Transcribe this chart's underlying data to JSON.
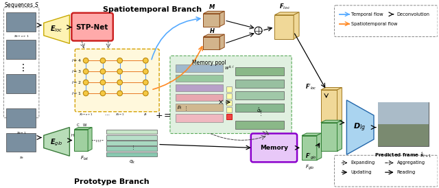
{
  "bg_color": "#ffffff",
  "spatiotemporal_branch_label": "Spatiotemporal Branch",
  "prototype_branch_label": "Prototype Branch",
  "sequences_label": "Sequences $S$",
  "predicted_frame_label": "Predicted frame $\\hat{\\boldsymbol{s}}_{t+1}$",
  "eloc_color": "#fef3b4",
  "eloc_edge": "#c8a800",
  "eglo_color": "#b8ddb8",
  "eglo_edge": "#3a7a3a",
  "stp_color": "#ffaaaa",
  "stp_edge": "#cc2222",
  "nn_box_color": "#fff8dc",
  "nn_box_edge": "#d4a000",
  "node_color": "#f5c842",
  "node_edge": "#b8860b",
  "orange_c": "#e87820",
  "blue_c": "#5599ff",
  "mem_pool_color": "#e0f0e0",
  "mem_pool_edge": "#5aaa5a",
  "memory_color": "#e8c8f8",
  "memory_edge": "#8b00cc",
  "dlg_color": "#aad4f0",
  "dlg_edge": "#2266aa",
  "floc_color": "#f0d898",
  "floc_edge": "#a07820",
  "fglo_color": "#a0d0a0",
  "fglo_edge": "#2e7d32",
  "legend_temporal_color": "#55aaff",
  "legend_spatio_color": "#ff8822",
  "tan_box_color": "#d2b48c",
  "tan_box_edge": "#8B4513"
}
